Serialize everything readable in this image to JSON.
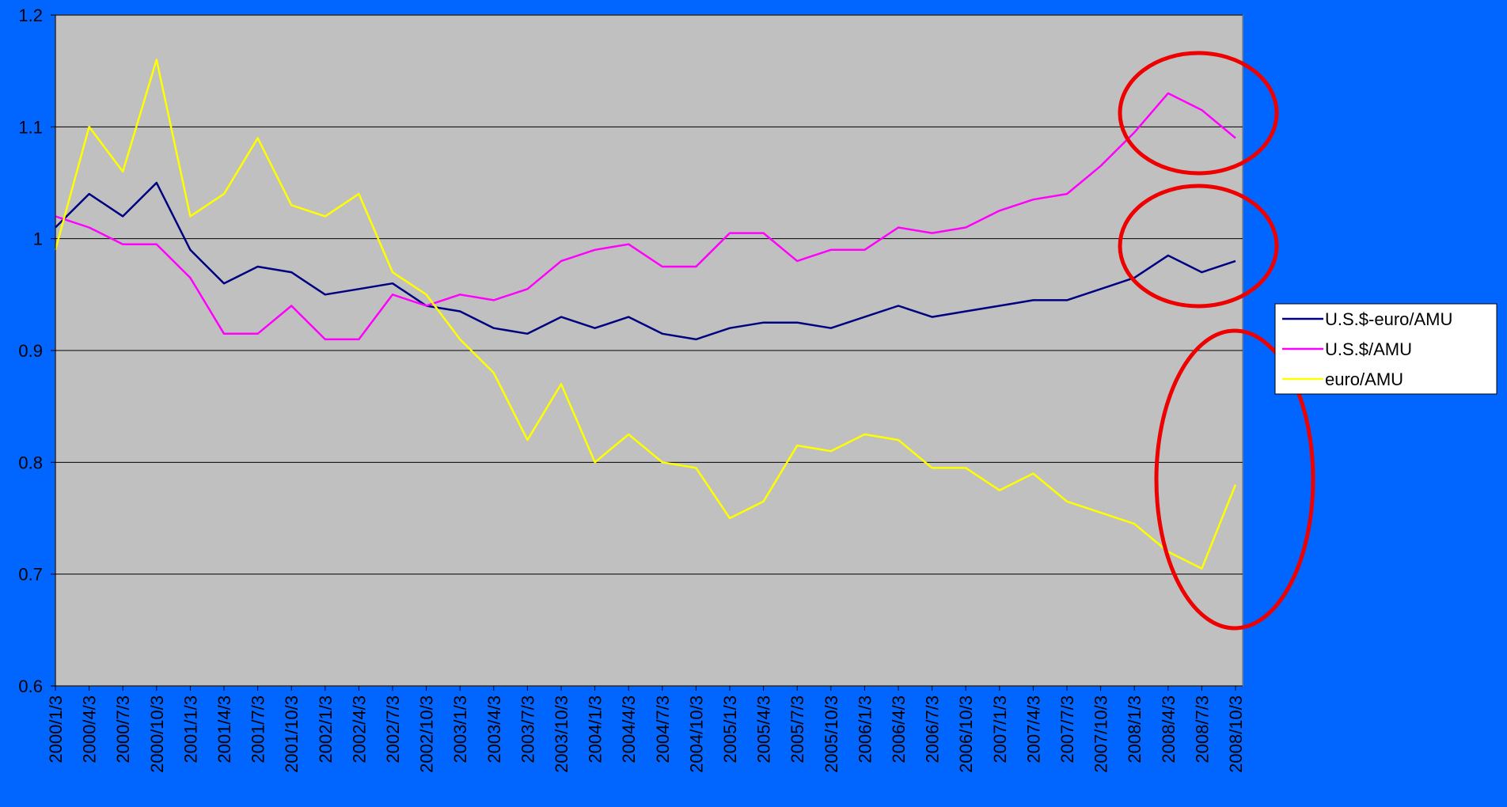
{
  "chart_data": {
    "type": "line",
    "categories": [
      "2000/1/3",
      "2000/4/3",
      "2000/7/3",
      "2000/10/3",
      "2001/1/3",
      "2001/4/3",
      "2001/7/3",
      "2001/10/3",
      "2002/1/3",
      "2002/4/3",
      "2002/7/3",
      "2002/10/3",
      "2003/1/3",
      "2003/4/3",
      "2003/7/3",
      "2003/10/3",
      "2004/1/3",
      "2004/4/3",
      "2004/7/3",
      "2004/10/3",
      "2005/1/3",
      "2005/4/3",
      "2005/7/3",
      "2005/10/3",
      "2006/1/3",
      "2006/4/3",
      "2006/7/3",
      "2006/10/3",
      "2007/1/3",
      "2007/4/3",
      "2007/7/3",
      "2007/10/3",
      "2008/1/3",
      "2008/4/3",
      "2008/7/3",
      "2008/10/3"
    ],
    "series": [
      {
        "name": "U.S.$-euro/AMU",
        "color": "#000080",
        "values": [
          1.01,
          1.04,
          1.02,
          1.05,
          0.99,
          0.96,
          0.975,
          0.97,
          0.95,
          0.955,
          0.96,
          0.94,
          0.935,
          0.92,
          0.915,
          0.93,
          0.92,
          0.93,
          0.915,
          0.91,
          0.92,
          0.925,
          0.925,
          0.92,
          0.93,
          0.94,
          0.93,
          0.935,
          0.94,
          0.945,
          0.945,
          0.955,
          0.965,
          0.985,
          0.97,
          0.98
        ]
      },
      {
        "name": "U.S.$/AMU",
        "color": "#ff00ff",
        "values": [
          1.02,
          1.01,
          0.995,
          0.995,
          0.965,
          0.915,
          0.915,
          0.94,
          0.91,
          0.91,
          0.95,
          0.94,
          0.95,
          0.945,
          0.955,
          0.98,
          0.99,
          0.995,
          0.975,
          0.975,
          1.005,
          1.005,
          0.98,
          0.99,
          0.99,
          1.01,
          1.005,
          1.01,
          1.025,
          1.035,
          1.04,
          1.065,
          1.095,
          1.13,
          1.115,
          1.09
        ]
      },
      {
        "name": "euro/AMU",
        "color": "#ffff00",
        "values": [
          0.99,
          1.1,
          1.06,
          1.16,
          1.02,
          1.04,
          1.09,
          1.03,
          1.02,
          1.04,
          0.97,
          0.95,
          0.91,
          0.88,
          0.82,
          0.87,
          0.8,
          0.825,
          0.8,
          0.795,
          0.75,
          0.765,
          0.815,
          0.81,
          0.825,
          0.82,
          0.795,
          0.795,
          0.775,
          0.79,
          0.765,
          0.755,
          0.745,
          0.72,
          0.705,
          0.78
        ]
      }
    ],
    "ylim": [
      0.6,
      1.2
    ],
    "yticks": [
      0.6,
      0.7,
      0.8,
      0.9,
      1,
      1.1,
      1.2
    ],
    "grid": true,
    "legend": "right"
  }
}
